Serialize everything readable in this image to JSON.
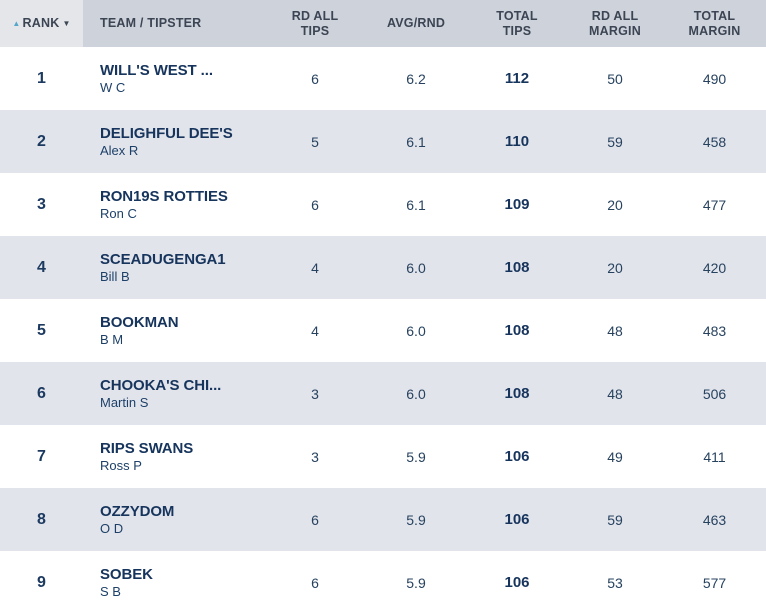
{
  "colors": {
    "header_bg": "#ced2da",
    "rank_header_bg": "#e4e6ea",
    "header_text": "#3c4554",
    "row_alt_bg": "#e2e4ec",
    "row_bg": "#ffffff",
    "text_navy_bold": "#16345c",
    "text_navy": "#27425f",
    "sort_asc_arrow": "#55a7c9",
    "sort_desc_arrow": "#3c4554"
  },
  "header": {
    "sort_icons": {
      "asc": "▲",
      "desc": "▼"
    },
    "columns": [
      {
        "key": "rank",
        "label": "RANK"
      },
      {
        "key": "team",
        "label": "TEAM / TIPSTER"
      },
      {
        "key": "rd_all_tips",
        "label": "RD ALL\nTIPS"
      },
      {
        "key": "avg_rnd",
        "label": "AVG/RND"
      },
      {
        "key": "total_tips",
        "label": "TOTAL\nTIPS"
      },
      {
        "key": "rd_all_margin",
        "label": "RD ALL\nMARGIN"
      },
      {
        "key": "total_margin",
        "label": "TOTAL\nMARGIN"
      }
    ]
  },
  "rows": [
    {
      "rank": "1",
      "team": "WILL'S WEST ...",
      "tipster": "W C",
      "rd_all_tips": "6",
      "avg_rnd": "6.2",
      "total_tips": "112",
      "rd_all_margin": "50",
      "total_margin": "490"
    },
    {
      "rank": "2",
      "team": "DELIGHFUL DEE'S",
      "tipster": "Alex R",
      "rd_all_tips": "5",
      "avg_rnd": "6.1",
      "total_tips": "110",
      "rd_all_margin": "59",
      "total_margin": "458"
    },
    {
      "rank": "3",
      "team": "RON19S ROTTIES",
      "tipster": "Ron C",
      "rd_all_tips": "6",
      "avg_rnd": "6.1",
      "total_tips": "109",
      "rd_all_margin": "20",
      "total_margin": "477"
    },
    {
      "rank": "4",
      "team": "SCEADUGENGA1",
      "tipster": "Bill B",
      "rd_all_tips": "4",
      "avg_rnd": "6.0",
      "total_tips": "108",
      "rd_all_margin": "20",
      "total_margin": "420"
    },
    {
      "rank": "5",
      "team": "BOOKMAN",
      "tipster": "B M",
      "rd_all_tips": "4",
      "avg_rnd": "6.0",
      "total_tips": "108",
      "rd_all_margin": "48",
      "total_margin": "483"
    },
    {
      "rank": "6",
      "team": "CHOOKA'S CHI...",
      "tipster": "Martin S",
      "rd_all_tips": "3",
      "avg_rnd": "6.0",
      "total_tips": "108",
      "rd_all_margin": "48",
      "total_margin": "506"
    },
    {
      "rank": "7",
      "team": "RIPS SWANS",
      "tipster": "Ross P",
      "rd_all_tips": "3",
      "avg_rnd": "5.9",
      "total_tips": "106",
      "rd_all_margin": "49",
      "total_margin": "411"
    },
    {
      "rank": "8",
      "team": "OZZYDOM",
      "tipster": "O D",
      "rd_all_tips": "6",
      "avg_rnd": "5.9",
      "total_tips": "106",
      "rd_all_margin": "59",
      "total_margin": "463"
    },
    {
      "rank": "9",
      "team": "SOBEK",
      "tipster": "S B",
      "rd_all_tips": "6",
      "avg_rnd": "5.9",
      "total_tips": "106",
      "rd_all_margin": "53",
      "total_margin": "577"
    }
  ]
}
